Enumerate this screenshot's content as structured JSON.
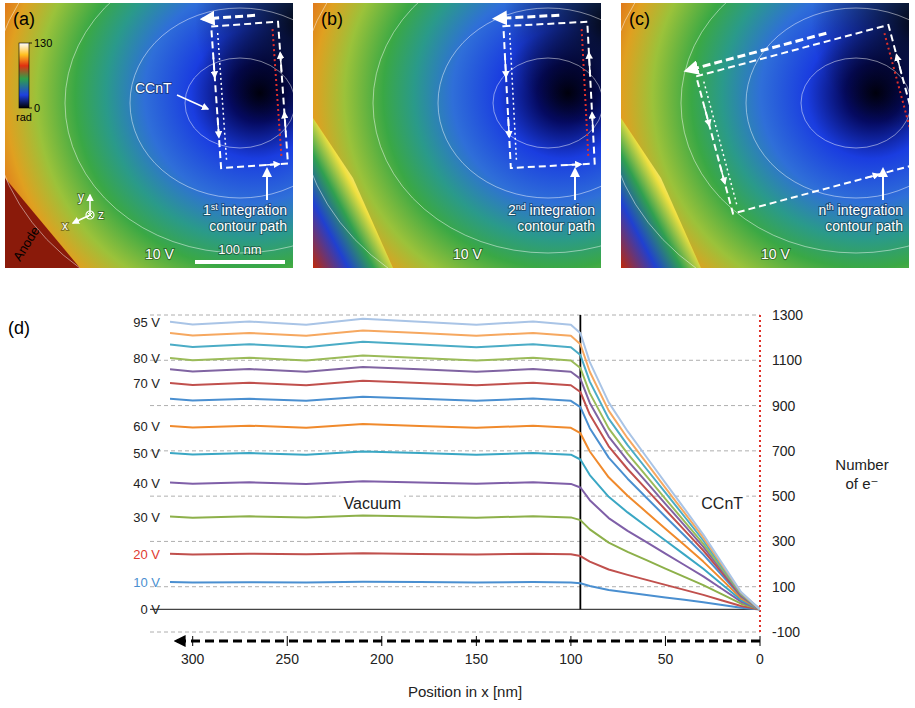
{
  "panels": [
    {
      "letter": "(a)",
      "voltage": "10 V",
      "path_label": "1st integration contour path",
      "tube_label": "CCnT",
      "anode_label": "Anode",
      "scale_bar": "100 nm",
      "axes": [
        "x",
        "y",
        "z"
      ],
      "colorbar": {
        "range": [
          0,
          130
        ],
        "ticks": [
          0,
          130
        ],
        "label": "rad"
      }
    },
    {
      "letter": "(b)",
      "voltage": "10 V",
      "path_label": "2nd integration contour path"
    },
    {
      "letter": "(c)",
      "voltage": "10 V",
      "path_label": "nth integration contour path"
    }
  ],
  "chart_data": {
    "type": "line",
    "letter": "(d)",
    "x_label": "Position in x [nm]",
    "y_label": "Number of e⁻",
    "xlim": [
      312,
      0
    ],
    "xticks": [
      300,
      250,
      200,
      150,
      100,
      50,
      0
    ],
    "ylim": [
      -100,
      1300
    ],
    "yticks": [
      -100,
      100,
      300,
      500,
      700,
      900,
      1100,
      1300
    ],
    "grid": true,
    "boundary_x": 95,
    "x": [
      0,
      10,
      20,
      30,
      40,
      50,
      60,
      70,
      80,
      90,
      95,
      100,
      120,
      150,
      180,
      210,
      240,
      270,
      300,
      312
    ],
    "series": [
      {
        "color": "#4a8fd0",
        "values": [
          0,
          7,
          19,
          31,
          42,
          53,
          64,
          74,
          86,
          103,
          115,
          119,
          121,
          118,
          121,
          122,
          119,
          120,
          118,
          121
        ]
      },
      {
        "color": "#c0504d",
        "values": [
          0,
          15,
          39,
          64,
          86,
          108,
          130,
          152,
          176,
          211,
          235,
          243,
          246,
          242,
          245,
          248,
          243,
          246,
          242,
          246
        ]
      },
      {
        "color": "#8db04a",
        "values": [
          0,
          25,
          66,
          107,
          144,
          180,
          217,
          254,
          295,
          353,
          394,
          406,
          411,
          405,
          410,
          414,
          406,
          411,
          405,
          410
        ]
      },
      {
        "color": "#7f5fa8",
        "values": [
          0,
          34,
          90,
          146,
          196,
          246,
          297,
          347,
          403,
          482,
          538,
          554,
          561,
          555,
          560,
          566,
          554,
          561,
          555,
          560
        ]
      },
      {
        "color": "#3aa7c4",
        "values": [
          0,
          41,
          110,
          179,
          242,
          304,
          366,
          428,
          497,
          593,
          662,
          683,
          691,
          683,
          690,
          697,
          683,
          690,
          684,
          690
        ]
      },
      {
        "color": "#f08a2c",
        "values": [
          0,
          49,
          130,
          211,
          284,
          356,
          429,
          502,
          583,
          697,
          778,
          802,
          811,
          802,
          810,
          818,
          802,
          811,
          803,
          810
        ]
      },
      {
        "color": "#4a8fd0",
        "values": [
          0,
          56,
          149,
          242,
          326,
          409,
          493,
          577,
          670,
          800,
          893,
          921,
          931,
          921,
          930,
          939,
          921,
          930,
          922,
          930
        ]
      },
      {
        "color": "#c0504d",
        "values": [
          0,
          60,
          160,
          260,
          350,
          440,
          530,
          620,
          720,
          860,
          960,
          990,
          1001,
          990,
          1000,
          1010,
          990,
          1001,
          991,
          1000
        ]
      },
      {
        "color": "#8064a2",
        "values": [
          0,
          64,
          170,
          276,
          371,
          466,
          562,
          657,
          763,
          912,
          1018,
          1049,
          1061,
          1049,
          1060,
          1071,
          1049,
          1061,
          1050,
          1060
        ]
      },
      {
        "color": "#9bbb59",
        "values": [
          0,
          67,
          178,
          289,
          389,
          488,
          588,
          688,
          799,
          955,
          1066,
          1099,
          1111,
          1099,
          1110,
          1121,
          1099,
          1111,
          1100,
          1110
        ]
      },
      {
        "color": "#4bacc6",
        "values": [
          0,
          70,
          187,
          304,
          410,
          515,
          620,
          725,
          842,
          1006,
          1123,
          1158,
          1171,
          1158,
          1170,
          1182,
          1158,
          1171,
          1159,
          1170
        ]
      },
      {
        "color": "#f6a860",
        "values": [
          0,
          73,
          195,
          317,
          427,
          537,
          647,
          756,
          878,
          1049,
          1171,
          1208,
          1221,
          1208,
          1220,
          1232,
          1208,
          1221,
          1209,
          1220
        ]
      },
      {
        "color": "#a9c4e6",
        "values": [
          0,
          76,
          203,
          330,
          445,
          559,
          673,
          787,
          914,
          1092,
          1219,
          1257,
          1271,
          1257,
          1270,
          1283,
          1257,
          1271,
          1258,
          1270
        ]
      }
    ],
    "annotations": [
      {
        "text": "95 V",
        "y": 1270
      },
      {
        "text": "80 V",
        "y": 1110
      },
      {
        "text": "70 V",
        "y": 1000
      },
      {
        "text": "60 V",
        "y": 810
      },
      {
        "text": "50 V",
        "y": 690
      },
      {
        "text": "40 V",
        "y": 560
      },
      {
        "text": "30 V",
        "y": 410
      },
      {
        "text": "20 V",
        "y": 245,
        "color": "#e03a30"
      },
      {
        "text": "10 V",
        "y": 120,
        "color": "#4a8fd0"
      },
      {
        "text": "0 V",
        "y": 0
      },
      {
        "text": "Vacuum",
        "x": 205,
        "y": 470
      },
      {
        "text": "CCnT",
        "x": 20,
        "y": 470
      }
    ]
  }
}
